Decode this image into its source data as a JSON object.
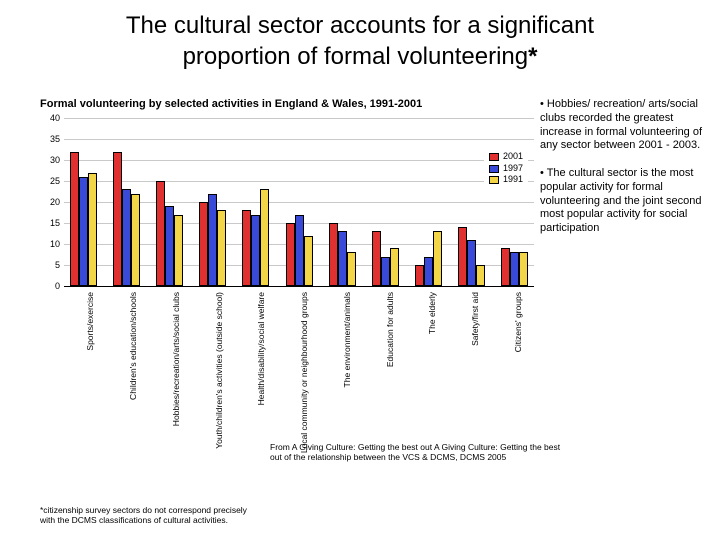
{
  "title_line1": "The cultural sector accounts for a significant",
  "title_line2": "proportion of formal volunteering",
  "title_asterisk": "*",
  "subtitle": "Formal volunteering by selected activities in England & Wales, 1991-2001",
  "chart": {
    "type": "bar",
    "ylim": [
      0,
      40
    ],
    "ytick_step": 5,
    "yticks": [
      0,
      5,
      10,
      15,
      20,
      25,
      30,
      35,
      40
    ],
    "grid_color": "#c9c9c9",
    "axis_color": "#000000",
    "background_color": "#ffffff",
    "bar_border": "#000000",
    "series": [
      {
        "name": "2001",
        "color": "#e03030"
      },
      {
        "name": "1997",
        "color": "#3a4ad8"
      },
      {
        "name": "1991",
        "color": "#f2d648"
      }
    ],
    "categories": [
      "Sports/exercise",
      "Children's education/schools",
      "Hobbies/recreation/arts/social clubs",
      "Youth/children's activities (outside school)",
      "Health/disability/social welfare",
      "Local community or neighbourhood groups",
      "The environment/animals",
      "Education for adults",
      "The elderly",
      "Safety/first aid",
      "Citizens' groups"
    ],
    "values": {
      "2001": [
        32,
        32,
        25,
        20,
        18,
        15,
        15,
        13,
        5,
        14,
        9
      ],
      "1997": [
        26,
        23,
        19,
        22,
        17,
        17,
        13,
        7,
        7,
        11,
        8
      ],
      "1991": [
        27,
        22,
        17,
        18,
        23,
        12,
        8,
        9,
        13,
        5,
        8
      ]
    }
  },
  "legend": [
    "2001",
    "1997",
    "1991"
  ],
  "bullets": [
    "• Hobbies/ recreation/ arts/social clubs recorded the greatest increase in formal volunteering of any sector between 2001 - 2003.",
    "• The cultural sector is the most popular activity for formal volunteering and the joint second most popular activity for social participation"
  ],
  "credit": "From A Giving Culture: Getting the best out A Giving Culture: Getting the best out of the relationship between the VCS & DCMS, DCMS 2005",
  "footnote": "*citizenship survey sectors do not correspond precisely with the DCMS classifications of cultural activities."
}
